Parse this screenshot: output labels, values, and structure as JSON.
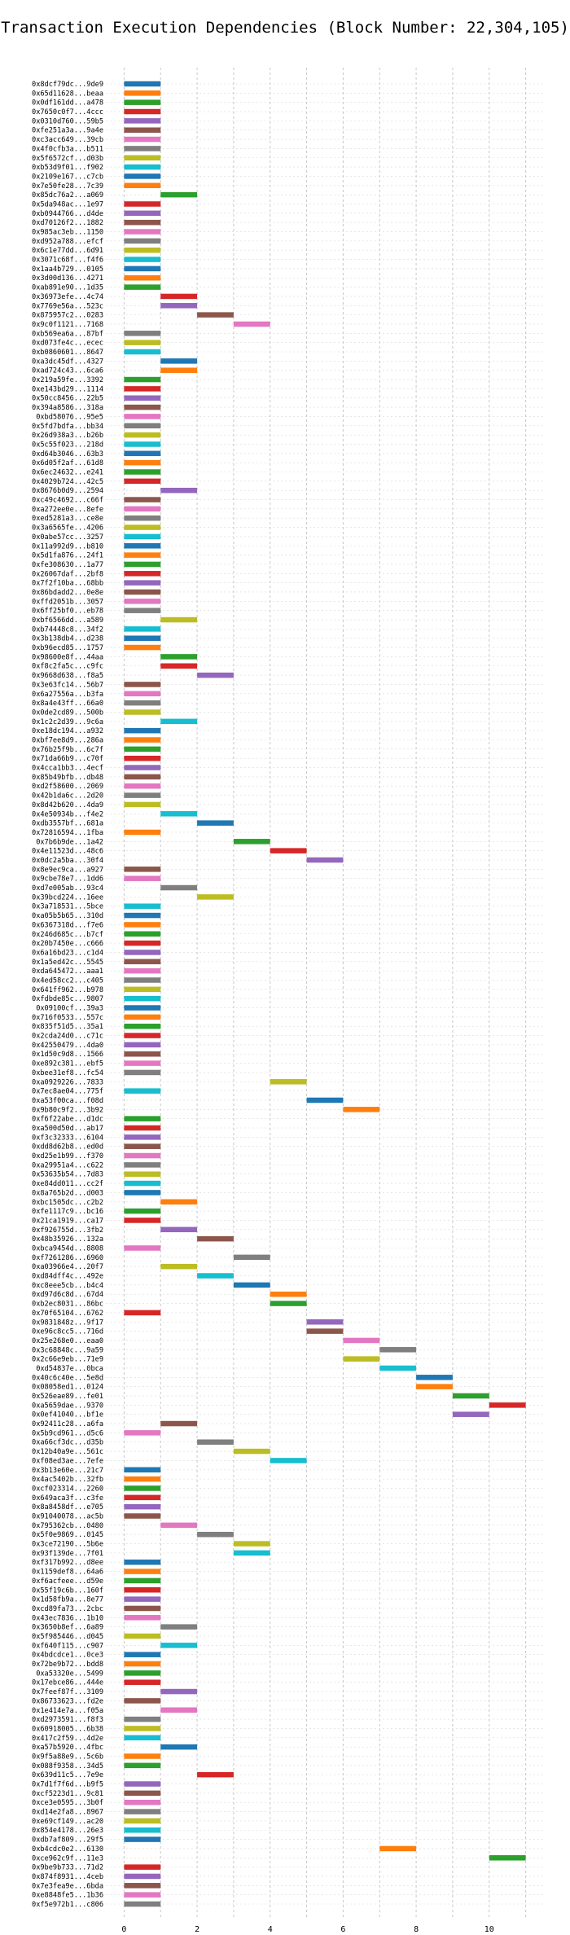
{
  "colors": [
    "#1f77b4",
    "#ff7f0e",
    "#2ca02c",
    "#d62728",
    "#9467bd",
    "#8c564b",
    "#e377c2",
    "#7f7f7f",
    "#bcbd22",
    "#17becf"
  ],
  "chart_data": {
    "type": "gantt",
    "title": "Transaction Execution Dependencies (Block Number: 22,304,105)",
    "xlabel": "",
    "ylabel": "",
    "xlim": [
      -0.5,
      11.5
    ],
    "x_ticks": [
      0,
      2,
      4,
      6,
      8,
      10
    ],
    "grid": true,
    "transactions": [
      {
        "label": "0x8dcf79dc...9de9",
        "start": 0
      },
      {
        "label": "0x65d11628...beaa",
        "start": 0
      },
      {
        "label": "0x0df161dd...a478",
        "start": 0
      },
      {
        "label": "0x7650c0f7...4ccc",
        "start": 0
      },
      {
        "label": "0x0310d760...59b5",
        "start": 0
      },
      {
        "label": "0xfe251a3a...9a4e",
        "start": 0
      },
      {
        "label": "0xc3acc649...39cb",
        "start": 0
      },
      {
        "label": "0x4f0cfb3a...b511",
        "start": 0
      },
      {
        "label": "0x5f6572cf...d03b",
        "start": 0
      },
      {
        "label": "0xb53d9f01...f902",
        "start": 0
      },
      {
        "label": "0x2109e167...c7cb",
        "start": 0
      },
      {
        "label": "0x7e50fe28...7c39",
        "start": 0
      },
      {
        "label": "0x85dc76a2...a069",
        "start": 1
      },
      {
        "label": "0x5da948ac...1e97",
        "start": 0
      },
      {
        "label": "0xb0944766...d4de",
        "start": 0
      },
      {
        "label": "0xd70126f2...1882",
        "start": 0
      },
      {
        "label": "0x985ac3eb...1150",
        "start": 0
      },
      {
        "label": "0xd952a788...efcf",
        "start": 0
      },
      {
        "label": "0x6c1e77dd...6d91",
        "start": 0
      },
      {
        "label": "0x3071c68f...f4f6",
        "start": 0
      },
      {
        "label": "0x1aa4b729...0105",
        "start": 0
      },
      {
        "label": "0x3d00d136...4271",
        "start": 0
      },
      {
        "label": "0xab891e90...1d35",
        "start": 0
      },
      {
        "label": "0x36973efe...4c74",
        "start": 1
      },
      {
        "label": "0x7769e56a...523c",
        "start": 1
      },
      {
        "label": "0x875957c2...0283",
        "start": 2
      },
      {
        "label": "0x9c0f1121...7168",
        "start": 3
      },
      {
        "label": "0xb569ea6a...87bf",
        "start": 0
      },
      {
        "label": "0xd073fe4c...ecec",
        "start": 0
      },
      {
        "label": "0xb0860601...8647",
        "start": 0
      },
      {
        "label": "0xa3dc45df...4327",
        "start": 1
      },
      {
        "label": "0xad724c43...6ca6",
        "start": 1
      },
      {
        "label": "0x219a59fe...3392",
        "start": 0
      },
      {
        "label": "0xe143bd29...1114",
        "start": 0
      },
      {
        "label": "0x50cc8456...22b5",
        "start": 0
      },
      {
        "label": "0x394a8586...318a",
        "start": 0
      },
      {
        "label": "0xbd58076...95e5",
        "start": 0
      },
      {
        "label": "0x5fd7bdfa...bb34",
        "start": 0
      },
      {
        "label": "0x26d938a3...b26b",
        "start": 0
      },
      {
        "label": "0x5c55f023...218d",
        "start": 0
      },
      {
        "label": "0xd64b3046...63b3",
        "start": 0
      },
      {
        "label": "0x6d05f2af...61d8",
        "start": 0
      },
      {
        "label": "0x6ec24632...e241",
        "start": 0
      },
      {
        "label": "0x4029b724...42c5",
        "start": 0
      },
      {
        "label": "0x8676b0d9...2594",
        "start": 1
      },
      {
        "label": "0xc49c4692...c66f",
        "start": 0
      },
      {
        "label": "0xa272ee0e...8efe",
        "start": 0
      },
      {
        "label": "0xed5281a3...ce8e",
        "start": 0
      },
      {
        "label": "0x3a6565fe...4206",
        "start": 0
      },
      {
        "label": "0x0abe57cc...3257",
        "start": 0
      },
      {
        "label": "0x11a992d9...b810",
        "start": 0
      },
      {
        "label": "0x5d1fa876...24f1",
        "start": 0
      },
      {
        "label": "0xfe308630...1a77",
        "start": 0
      },
      {
        "label": "0x26067daf...2bf8",
        "start": 0
      },
      {
        "label": "0x7f2f10ba...68bb",
        "start": 0
      },
      {
        "label": "0x86bdadd2...0e8e",
        "start": 0
      },
      {
        "label": "0xffd2051b...3057",
        "start": 0
      },
      {
        "label": "0x6ff25bf0...eb78",
        "start": 0
      },
      {
        "label": "0xbf6566dd...a589",
        "start": 1
      },
      {
        "label": "0xb74448c8...34f2",
        "start": 0
      },
      {
        "label": "0x3b138db4...d238",
        "start": 0
      },
      {
        "label": "0xb96ecd85...1757",
        "start": 0
      },
      {
        "label": "0x98600e8f...44aa",
        "start": 1
      },
      {
        "label": "0xf8c2fa5c...c9fc",
        "start": 1
      },
      {
        "label": "0x9668d638...f8a5",
        "start": 2
      },
      {
        "label": "0x3e63fc14...56b7",
        "start": 0
      },
      {
        "label": "0x6a27556a...b3fa",
        "start": 0
      },
      {
        "label": "0x8a4e43ff...66a0",
        "start": 0
      },
      {
        "label": "0x0de2cd89...500b",
        "start": 0
      },
      {
        "label": "0x1c2c2d39...9c6a",
        "start": 1
      },
      {
        "label": "0xe18dc194...a932",
        "start": 0
      },
      {
        "label": "0xbf7ee8d9...286a",
        "start": 0
      },
      {
        "label": "0x76b25f9b...6c7f",
        "start": 0
      },
      {
        "label": "0x71da66b9...c70f",
        "start": 0
      },
      {
        "label": "0x4cca1bb3...4ecf",
        "start": 0
      },
      {
        "label": "0x85b49bfb...db48",
        "start": 0
      },
      {
        "label": "0xd2f58600...2069",
        "start": 0
      },
      {
        "label": "0x42b1da6c...2d20",
        "start": 0
      },
      {
        "label": "0x8d42b620...4da9",
        "start": 0
      },
      {
        "label": "0x4e50934b...f4e2",
        "start": 1
      },
      {
        "label": "0xdb3557bf...681a",
        "start": 2
      },
      {
        "label": "0x72816594...1fba",
        "start": 0
      },
      {
        "label": "0x7b6b9de...1a42",
        "start": 3
      },
      {
        "label": "0x4e11523d...48c6",
        "start": 4
      },
      {
        "label": "0x0dc2a5ba...30f4",
        "start": 5
      },
      {
        "label": "0x8e9ec9ca...a927",
        "start": 0
      },
      {
        "label": "0x9cbe78e7...1dd6",
        "start": 0
      },
      {
        "label": "0xd7e005ab...93c4",
        "start": 1
      },
      {
        "label": "0x39bcd224...16ee",
        "start": 2
      },
      {
        "label": "0x3a718531...5bce",
        "start": 0
      },
      {
        "label": "0xa05b5b65...310d",
        "start": 0
      },
      {
        "label": "0x6367318d...f7e6",
        "start": 0
      },
      {
        "label": "0x246d685c...b7cf",
        "start": 0
      },
      {
        "label": "0x20b7450e...c666",
        "start": 0
      },
      {
        "label": "0x6a16bd23...c1d4",
        "start": 0
      },
      {
        "label": "0x1a5ed42c...5545",
        "start": 0
      },
      {
        "label": "0xda645472...aaa1",
        "start": 0
      },
      {
        "label": "0x4ed58cc2...c405",
        "start": 0
      },
      {
        "label": "0x641ff962...b978",
        "start": 0
      },
      {
        "label": "0xfdbde85c...9807",
        "start": 0
      },
      {
        "label": "0x09100cf...39a3",
        "start": 0
      },
      {
        "label": "0x716f0533...557c",
        "start": 0
      },
      {
        "label": "0x835f51d5...35a1",
        "start": 0
      },
      {
        "label": "0x2cda24d0...c71c",
        "start": 0
      },
      {
        "label": "0x42550479...4da0",
        "start": 0
      },
      {
        "label": "0x1d50c9d8...1566",
        "start": 0
      },
      {
        "label": "0xe892c381...ebf5",
        "start": 0
      },
      {
        "label": "0xbee31ef8...fc54",
        "start": 0
      },
      {
        "label": "0xa0929226...7833",
        "start": 4
      },
      {
        "label": "0x7ec8ae04...775f",
        "start": 0
      },
      {
        "label": "0xa53f00ca...f08d",
        "start": 5
      },
      {
        "label": "0x9b80c9f2...3b92",
        "start": 6
      },
      {
        "label": "0xf6f22abe...d1dc",
        "start": 0
      },
      {
        "label": "0xa500d50d...ab17",
        "start": 0
      },
      {
        "label": "0xf3c32333...6104",
        "start": 0
      },
      {
        "label": "0xdd8d62b8...ed0d",
        "start": 0
      },
      {
        "label": "0xd25e1b99...f370",
        "start": 0
      },
      {
        "label": "0xa29951a4...c622",
        "start": 0
      },
      {
        "label": "0x53635b54...7d83",
        "start": 0
      },
      {
        "label": "0xe84dd011...cc2f",
        "start": 0
      },
      {
        "label": "0x8a765b2d...d003",
        "start": 0
      },
      {
        "label": "0xbc1505dc...c2b2",
        "start": 1
      },
      {
        "label": "0xfe1117c9...bc16",
        "start": 0
      },
      {
        "label": "0x21ca1919...ca17",
        "start": 0
      },
      {
        "label": "0xf926755d...3fb2",
        "start": 1
      },
      {
        "label": "0x48b35926...132a",
        "start": 2
      },
      {
        "label": "0xbca9454d...8808",
        "start": 0
      },
      {
        "label": "0xf7261286...6960",
        "start": 3
      },
      {
        "label": "0xa03966e4...20f7",
        "start": 1
      },
      {
        "label": "0xd84dff4c...492e",
        "start": 2
      },
      {
        "label": "0xc8eee5cb...b4c4",
        "start": 3
      },
      {
        "label": "0xd97d6c8d...67d4",
        "start": 4
      },
      {
        "label": "0xb2ec8031...86bc",
        "start": 4
      },
      {
        "label": "0x70f65104...6762",
        "start": 0
      },
      {
        "label": "0x9831848z...9f17",
        "start": 5
      },
      {
        "label": "0xe96c8cc5...716d",
        "start": 5
      },
      {
        "label": "0x25e268e0...eaa0",
        "start": 6
      },
      {
        "label": "0x3c68848c...9a59",
        "start": 7
      },
      {
        "label": "0x2c66e9eb...71e9",
        "start": 6
      },
      {
        "label": "0xd54837e...0bca",
        "start": 7
      },
      {
        "label": "0x40c6c40e...5e8d",
        "start": 8
      },
      {
        "label": "0x08058ed1...0124",
        "start": 8
      },
      {
        "label": "0x526eae89...fe01",
        "start": 9
      },
      {
        "label": "0xa5659dae...9370",
        "start": 10
      },
      {
        "label": "0x0ef41040...bf1e",
        "start": 9
      },
      {
        "label": "0x92411c28...a6fa",
        "start": 1
      },
      {
        "label": "0x5b9cd961...d5c6",
        "start": 0
      },
      {
        "label": "0xa66cf3dc...d35b",
        "start": 2
      },
      {
        "label": "0x12b40a9e...561c",
        "start": 3
      },
      {
        "label": "0xf08ed3ae...7efe",
        "start": 4
      },
      {
        "label": "0x3b13e60e...21c7",
        "start": 0
      },
      {
        "label": "0x4ac5402b...32fb",
        "start": 0
      },
      {
        "label": "0xcf023314...2260",
        "start": 0
      },
      {
        "label": "0x649aca3f...c3fe",
        "start": 0
      },
      {
        "label": "0x8a8458df...e705",
        "start": 0
      },
      {
        "label": "0x91040078...ac5b",
        "start": 0
      },
      {
        "label": "0x795362cb...0480",
        "start": 1
      },
      {
        "label": "0x5f0e9869...0145",
        "start": 2
      },
      {
        "label": "0x3ce72190...5b6e",
        "start": 3
      },
      {
        "label": "0x93f139de...7f01",
        "start": 3
      },
      {
        "label": "0xf317b992...d8ee",
        "start": 0
      },
      {
        "label": "0x1159def8...64a6",
        "start": 0
      },
      {
        "label": "0xf6acfeee...d59e",
        "start": 0
      },
      {
        "label": "0x55f19c6b...160f",
        "start": 0
      },
      {
        "label": "0x1d58fb9a...8e77",
        "start": 0
      },
      {
        "label": "0xcd89fa73...2cbc",
        "start": 0
      },
      {
        "label": "0x43ec7836...1b10",
        "start": 0
      },
      {
        "label": "0x3650b8ef...6a89",
        "start": 1
      },
      {
        "label": "0x5f985446...d045",
        "start": 0
      },
      {
        "label": "0xf640f115...c907",
        "start": 1
      },
      {
        "label": "0x4bdcdce1...0ce3",
        "start": 0
      },
      {
        "label": "0x72be9b72...bdd8",
        "start": 0
      },
      {
        "label": "0xa53320e...5499",
        "start": 0
      },
      {
        "label": "0x17ebce86...444e",
        "start": 0
      },
      {
        "label": "0x7feef87f...3109",
        "start": 1
      },
      {
        "label": "0x86733623...fd2e",
        "start": 0
      },
      {
        "label": "0x1e414e7a...f05a",
        "start": 1
      },
      {
        "label": "0xd2973591...f8f3",
        "start": 0
      },
      {
        "label": "0x60918005...6b38",
        "start": 0
      },
      {
        "label": "0x417c2f59...4d2e",
        "start": 0
      },
      {
        "label": "0xa57b5920...4fbc",
        "start": 1
      },
      {
        "label": "0x9f5a88e9...5c6b",
        "start": 0
      },
      {
        "label": "0x088f9358...34d5",
        "start": 0
      },
      {
        "label": "0x639d11c5...7e9e",
        "start": 2
      },
      {
        "label": "0x7d1f7f6d...b9f5",
        "start": 0
      },
      {
        "label": "0xcf5223d1...9c81",
        "start": 0
      },
      {
        "label": "0xce3e0595...3b0f",
        "start": 0
      },
      {
        "label": "0xd14e2fa8...8967",
        "start": 0
      },
      {
        "label": "0xe69cf149...ac20",
        "start": 0
      },
      {
        "label": "0x854e4178...26e3",
        "start": 0
      },
      {
        "label": "0xdb7af809...29f5",
        "start": 0
      },
      {
        "label": "0xb4cdc0e2...6130",
        "start": 7
      },
      {
        "label": "0xce962c9f...11e3",
        "start": 10
      },
      {
        "label": "0x9be9b733...71d2",
        "start": 0
      },
      {
        "label": "0x874f8931...4ceb",
        "start": 0
      },
      {
        "label": "0x7e3fea9e...6bda",
        "start": 0
      },
      {
        "label": "0xe8848fe5...1b36",
        "start": 0
      },
      {
        "label": "0xf5e972b1...c806",
        "start": 0
      }
    ]
  }
}
